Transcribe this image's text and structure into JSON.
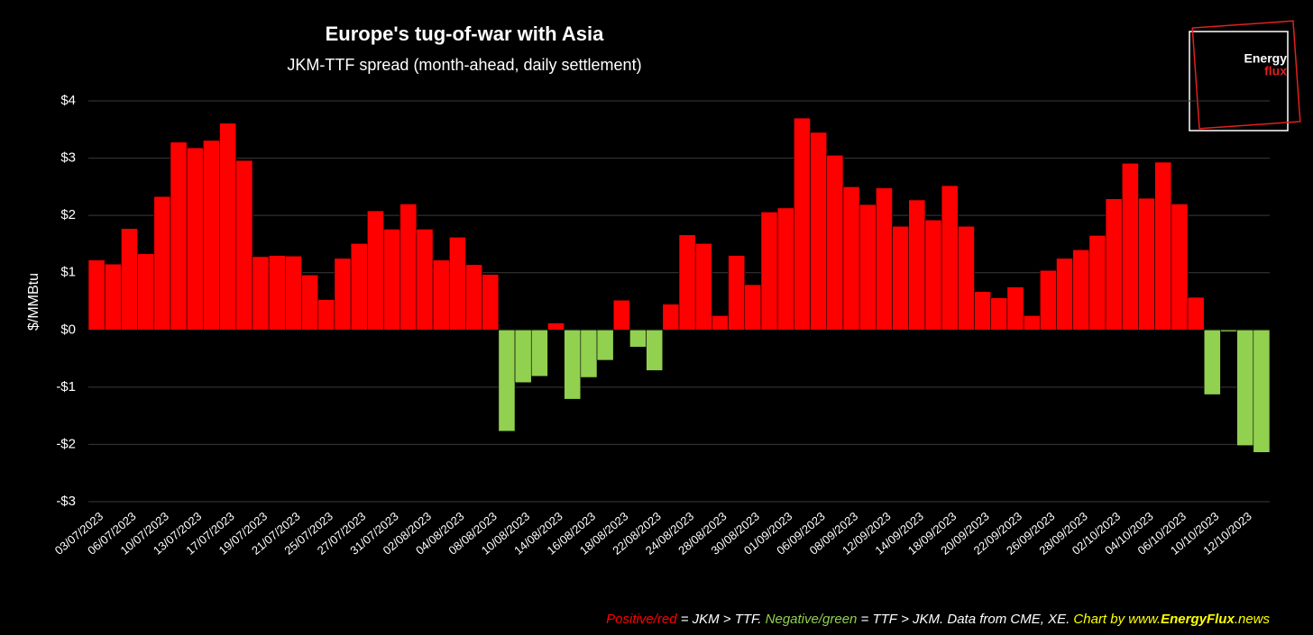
{
  "chart_data": {
    "type": "bar",
    "title": "Europe's tug-of-war with Asia",
    "subtitle": "JKM-TTF spread (month-ahead, daily settlement)",
    "y_label": "$/MMBtu",
    "logo": [
      "Energy",
      "flux"
    ],
    "note": [
      {
        "text": "Positive/red",
        "color": "#ff0000"
      },
      {
        "text": " = JKM > TTF. ",
        "color": "#ffffff"
      },
      {
        "text": "Negative/green",
        "color": "#92d050"
      },
      {
        "text": " = TTF > JKM. Data from CME, XE. ",
        "color": "#ffffff"
      },
      {
        "text": "Chart by www.",
        "color": "#ffff00"
      },
      {
        "text": "EnergyFlux",
        "color": "#ffff00",
        "bold": true
      },
      {
        "text": ".news",
        "color": "#ffff00"
      }
    ],
    "categories": [
      "03/07/2023",
      null,
      "06/07/2023",
      null,
      "10/07/2023",
      null,
      "13/07/2023",
      null,
      "17/07/2023",
      null,
      "19/07/2023",
      null,
      "21/07/2023",
      null,
      "25/07/2023",
      null,
      "27/07/2023",
      null,
      "31/07/2023",
      null,
      "02/08/2023",
      null,
      "04/08/2023",
      null,
      "08/08/2023",
      null,
      "10/08/2023",
      null,
      "14/08/2023",
      null,
      "16/08/2023",
      null,
      "18/08/2023",
      null,
      "22/08/2023",
      null,
      "24/08/2023",
      null,
      "28/08/2023",
      null,
      "30/08/2023",
      null,
      "01/09/2023",
      null,
      "06/09/2023",
      null,
      "08/09/2023",
      null,
      "12/09/2023",
      null,
      "14/09/2023",
      null,
      "18/09/2023",
      null,
      "20/09/2023",
      null,
      "22/09/2023",
      null,
      "26/09/2023",
      null,
      "28/09/2023",
      null,
      "02/10/2023",
      null,
      "04/10/2023",
      null,
      "06/10/2023",
      null,
      "10/10/2023",
      null,
      "12/10/2023",
      null
    ],
    "values": [
      1.22,
      1.15,
      1.77,
      1.33,
      2.33,
      3.28,
      3.18,
      3.31,
      3.61,
      2.96,
      1.28,
      1.3,
      1.29,
      0.96,
      0.53,
      1.25,
      1.51,
      2.08,
      1.76,
      2.2,
      1.76,
      1.22,
      1.62,
      1.14,
      0.97,
      -1.77,
      -0.92,
      -0.81,
      0.12,
      -1.21,
      -0.83,
      -0.53,
      0.52,
      -0.3,
      -0.71,
      0.45,
      1.66,
      1.51,
      0.25,
      1.3,
      0.79,
      2.06,
      2.13,
      3.7,
      3.45,
      3.05,
      2.5,
      2.19,
      2.48,
      1.81,
      2.27,
      1.92,
      2.52,
      1.81,
      0.67,
      0.56,
      0.75,
      0.25,
      1.04,
      1.25,
      1.4,
      1.65,
      2.29,
      2.91,
      2.3,
      2.93,
      2.2,
      0.57,
      -1.13,
      -0.03,
      -2.02,
      -2.14
    ],
    "positive_color": "#ff0000",
    "negative_color": "#92d050",
    "ylim": [
      -3,
      4
    ],
    "yticks": [
      {
        "value": -3,
        "label": "-$3"
      },
      {
        "value": -2,
        "label": "-$2"
      },
      {
        "value": -1,
        "label": "-$1"
      },
      {
        "value": 0,
        "label": "$0"
      },
      {
        "value": 1,
        "label": "$1"
      },
      {
        "value": 2,
        "label": "$2"
      },
      {
        "value": 3,
        "label": "$3"
      },
      {
        "value": 4,
        "label": "$4"
      }
    ],
    "grid": true
  }
}
